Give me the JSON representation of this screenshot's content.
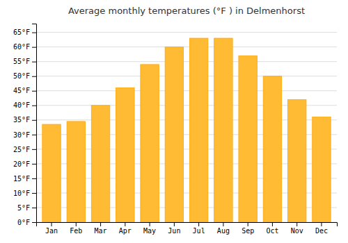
{
  "chart_data": {
    "type": "bar",
    "title": "Average monthly temperatures (°F ) in Delmenhorst",
    "categories": [
      "Jan",
      "Feb",
      "Mar",
      "Apr",
      "May",
      "Jun",
      "Jul",
      "Aug",
      "Sep",
      "Oct",
      "Nov",
      "Dec"
    ],
    "values": [
      33.5,
      34.5,
      40.0,
      46.0,
      54.0,
      60.0,
      63.0,
      63.0,
      57.0,
      50.0,
      42.0,
      36.0
    ],
    "color": "#FFBB33",
    "ylim": [
      0,
      68
    ],
    "yticks": [
      {
        "value": 0,
        "label": "0°F"
      },
      {
        "value": 5,
        "label": "5°F"
      },
      {
        "value": 10,
        "label": "10°F"
      },
      {
        "value": 15,
        "label": "15°F"
      },
      {
        "value": 20,
        "label": "20°F"
      },
      {
        "value": 25,
        "label": "25°F"
      },
      {
        "value": 30,
        "label": "30°F"
      },
      {
        "value": 35,
        "label": "35°F"
      },
      {
        "value": 40,
        "label": "40°F"
      },
      {
        "value": 45,
        "label": "45°F"
      },
      {
        "value": 50,
        "label": "50°F"
      },
      {
        "value": 55,
        "label": "55°F"
      },
      {
        "value": 60,
        "label": "60°F"
      },
      {
        "value": 65,
        "label": "65°F"
      }
    ],
    "grid": true
  }
}
